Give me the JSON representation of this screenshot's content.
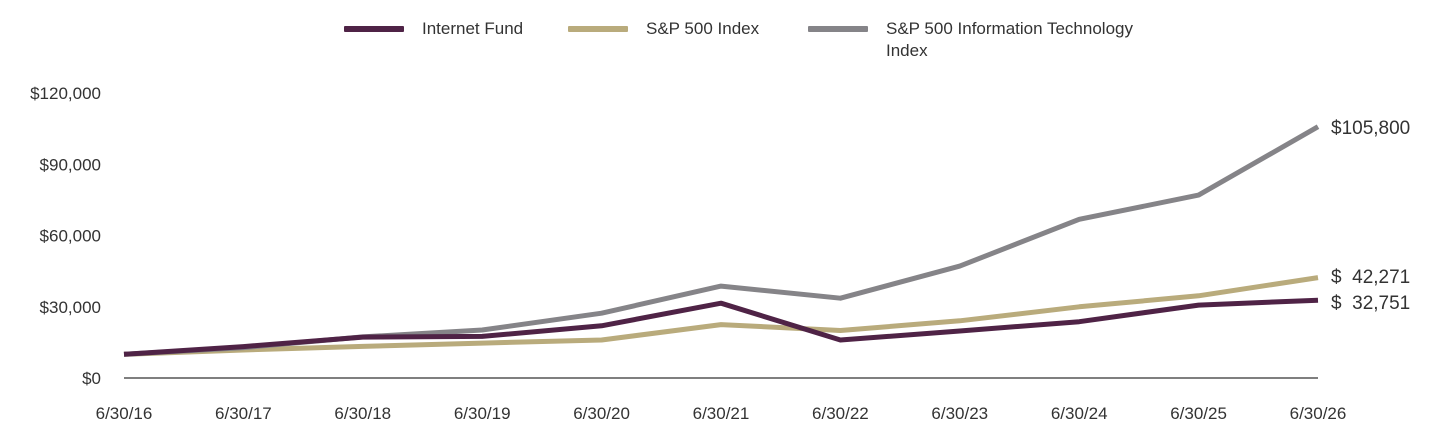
{
  "chart_data": {
    "type": "line",
    "categories": [
      "6/30/16",
      "6/30/17",
      "6/30/18",
      "6/30/19",
      "6/30/20",
      "6/30/21",
      "6/30/22",
      "6/30/23",
      "6/30/24",
      "6/30/25",
      "6/30/26"
    ],
    "ylim": [
      0,
      120000
    ],
    "yticks": [
      "$0",
      "$30,000",
      "$60,000",
      "$90,000",
      "$120,000"
    ],
    "ytick_values": [
      0,
      30000,
      60000,
      90000,
      120000
    ],
    "grid": false,
    "legend_position": "top-center",
    "series": [
      {
        "name": "Internet Fund",
        "color": "#4f2346",
        "values": [
          10000,
          13200,
          17200,
          17500,
          22000,
          31500,
          16000,
          19800,
          23700,
          30700,
          32751
        ],
        "end_label": "$  32,751"
      },
      {
        "name": "S&P 500 Index",
        "color": "#b9ab7c",
        "values": [
          10000,
          11800,
          13300,
          14700,
          16000,
          22500,
          20000,
          24100,
          30000,
          34600,
          42271
        ],
        "end_label": "$  42,271"
      },
      {
        "name": "S&P 500 Information Technology Index",
        "color": "#858488",
        "values": [
          10000,
          12800,
          17300,
          20200,
          27300,
          38700,
          33600,
          47100,
          66800,
          77000,
          105800
        ],
        "end_label": "$105,800"
      }
    ]
  }
}
